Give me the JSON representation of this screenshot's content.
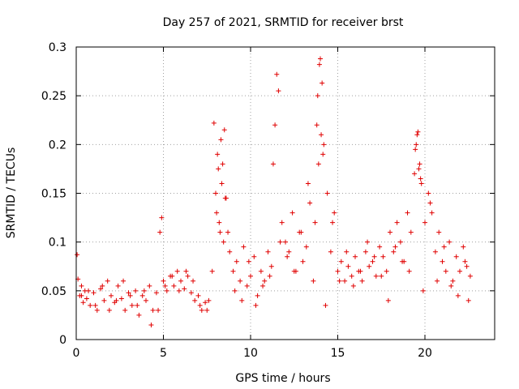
{
  "chart_data": {
    "type": "scatter",
    "title": "Day 257 of 2021, SRMTID for receiver brst",
    "xlabel": "GPS time / hours",
    "ylabel": "SRMTID / TECUs",
    "xlim": [
      0,
      24
    ],
    "ylim": [
      0,
      0.3
    ],
    "x_ticks": [
      0,
      5,
      10,
      15,
      20
    ],
    "x_tick_labels": [
      "0",
      "5",
      "10",
      "15",
      "20"
    ],
    "y_ticks": [
      0,
      0.05,
      0.1,
      0.15,
      0.2,
      0.25,
      0.3
    ],
    "y_tick_labels": [
      "0",
      "0.05",
      "0.1",
      "0.15",
      "0.2",
      "0.25",
      "0.3"
    ],
    "grid": true,
    "marker": "+",
    "color": "#e00000",
    "series": [
      {
        "name": "SRMTID",
        "x": [
          0.05,
          0.1,
          0.2,
          0.3,
          0.4,
          0.5,
          0.6,
          0.8,
          1.0,
          1.2,
          1.4,
          1.6,
          1.8,
          2.0,
          2.2,
          2.4,
          2.6,
          2.8,
          3.0,
          3.2,
          3.4,
          3.6,
          3.8,
          4.0,
          4.2,
          4.4,
          4.6,
          4.8,
          4.9,
          5.0,
          5.2,
          5.4,
          5.6,
          5.8,
          6.0,
          6.2,
          6.4,
          6.6,
          6.8,
          7.0,
          7.2,
          7.4,
          7.6,
          7.8,
          7.9,
          8.0,
          8.1,
          8.2,
          8.3,
          8.4,
          8.5,
          8.6,
          8.7,
          8.8,
          9.0,
          9.2,
          9.4,
          9.6,
          9.8,
          10.0,
          10.2,
          10.4,
          10.6,
          10.8,
          11.0,
          11.2,
          11.4,
          11.5,
          11.6,
          11.8,
          12.0,
          12.2,
          12.4,
          12.6,
          12.8,
          13.0,
          13.2,
          13.4,
          13.6,
          13.8,
          13.9,
          14.0,
          14.1,
          14.2,
          14.4,
          14.6,
          14.8,
          15.0,
          15.2,
          15.4,
          15.6,
          15.8,
          16.0,
          16.2,
          16.4,
          16.6,
          16.8,
          17.0,
          17.2,
          17.4,
          17.6,
          17.8,
          18.0,
          18.2,
          18.4,
          18.6,
          18.8,
          19.0,
          19.2,
          19.4,
          19.5,
          19.6,
          19.7,
          19.8,
          20.0,
          20.2,
          20.4,
          20.6,
          20.8,
          21.0,
          21.2,
          21.4,
          21.6,
          21.8,
          22.0,
          22.2,
          22.4,
          22.6,
          0.3,
          0.7,
          1.1,
          1.5,
          1.9,
          2.3,
          2.7,
          3.1,
          3.5,
          3.9,
          4.3,
          4.7,
          5.1,
          5.5,
          5.9,
          6.3,
          6.7,
          7.1,
          7.5,
          8.05,
          8.15,
          8.25,
          8.35,
          8.45,
          8.55,
          9.1,
          9.5,
          9.9,
          10.3,
          10.7,
          11.1,
          11.3,
          11.7,
          12.1,
          12.5,
          12.9,
          13.3,
          13.7,
          13.85,
          13.95,
          14.05,
          14.15,
          14.3,
          14.7,
          15.1,
          15.5,
          15.9,
          16.3,
          16.7,
          17.1,
          17.5,
          17.9,
          18.3,
          18.7,
          19.1,
          19.45,
          19.55,
          19.65,
          19.75,
          19.9,
          20.3,
          20.7,
          21.1,
          21.5,
          21.9,
          22.3,
          22.5
        ],
        "y": [
          0.087,
          0.062,
          0.045,
          0.055,
          0.038,
          0.05,
          0.042,
          0.035,
          0.048,
          0.03,
          0.052,
          0.04,
          0.06,
          0.045,
          0.038,
          0.055,
          0.042,
          0.03,
          0.048,
          0.035,
          0.05,
          0.025,
          0.045,
          0.04,
          0.055,
          0.03,
          0.048,
          0.11,
          0.125,
          0.06,
          0.05,
          0.065,
          0.055,
          0.07,
          0.06,
          0.052,
          0.065,
          0.048,
          0.04,
          0.045,
          0.03,
          0.038,
          0.04,
          0.07,
          0.222,
          0.15,
          0.19,
          0.12,
          0.205,
          0.18,
          0.215,
          0.145,
          0.11,
          0.09,
          0.07,
          0.08,
          0.06,
          0.095,
          0.055,
          0.065,
          0.085,
          0.045,
          0.07,
          0.06,
          0.09,
          0.075,
          0.22,
          0.272,
          0.255,
          0.12,
          0.1,
          0.09,
          0.13,
          0.07,
          0.11,
          0.08,
          0.095,
          0.14,
          0.06,
          0.22,
          0.18,
          0.288,
          0.263,
          0.2,
          0.15,
          0.09,
          0.13,
          0.07,
          0.08,
          0.06,
          0.075,
          0.065,
          0.085,
          0.07,
          0.06,
          0.09,
          0.075,
          0.08,
          0.065,
          0.095,
          0.085,
          0.07,
          0.11,
          0.09,
          0.12,
          0.1,
          0.08,
          0.13,
          0.11,
          0.17,
          0.2,
          0.213,
          0.18,
          0.16,
          0.12,
          0.15,
          0.13,
          0.09,
          0.11,
          0.08,
          0.07,
          0.1,
          0.06,
          0.085,
          0.07,
          0.095,
          0.075,
          0.065,
          0.045,
          0.05,
          0.035,
          0.055,
          0.03,
          0.04,
          0.06,
          0.045,
          0.035,
          0.05,
          0.015,
          0.03,
          0.055,
          0.065,
          0.05,
          0.07,
          0.06,
          0.035,
          0.03,
          0.13,
          0.175,
          0.11,
          0.16,
          0.1,
          0.145,
          0.05,
          0.04,
          0.08,
          0.035,
          0.055,
          0.065,
          0.18,
          0.1,
          0.085,
          0.07,
          0.11,
          0.16,
          0.12,
          0.25,
          0.282,
          0.21,
          0.19,
          0.035,
          0.12,
          0.06,
          0.09,
          0.055,
          0.07,
          0.1,
          0.085,
          0.065,
          0.04,
          0.095,
          0.08,
          0.07,
          0.195,
          0.21,
          0.175,
          0.165,
          0.05,
          0.14,
          0.06,
          0.095,
          0.055,
          0.045,
          0.08,
          0.04
        ]
      }
    ]
  }
}
